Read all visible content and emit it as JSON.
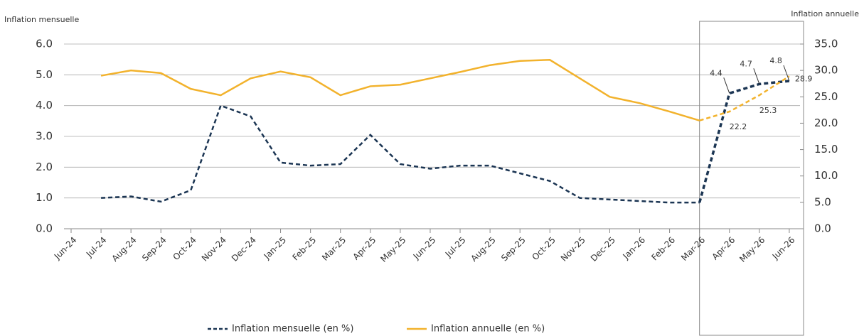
{
  "chart_data": {
    "type": "line",
    "y_axis_label": "Inflation mensuelle",
    "y2_axis_label": "Inflation annuelle",
    "categories": [
      "Jun-24",
      "Jul-24",
      "Aug-24",
      "Sep-24",
      "Oct-24",
      "Nov-24",
      "Dec-24",
      "Jan-25",
      "Feb-25",
      "Mar-25",
      "Apr-25",
      "May-25",
      "Jun-25",
      "Jul-25",
      "Aug-25",
      "Sep-25",
      "Oct-25",
      "Nov-25",
      "Dec-25",
      "Jan-26",
      "Feb-26",
      "Mar-26",
      "Apr-26",
      "May-26",
      "Jun-26"
    ],
    "highlight_from": "Mar-26",
    "series": [
      {
        "name": "Inflation mensuelle (en %)",
        "color": "#1b3553",
        "style": "dashed",
        "axis": "y",
        "values": [
          null,
          1.0,
          1.05,
          0.88,
          1.25,
          4.0,
          3.65,
          2.15,
          2.05,
          2.1,
          3.05,
          2.1,
          1.95,
          2.05,
          2.05,
          1.8,
          1.55,
          1.0,
          0.95,
          0.9,
          0.85,
          0.85,
          4.4,
          4.7,
          4.8
        ]
      },
      {
        "name": "Inflation annuelle (en %)",
        "color": "#f2b22c",
        "style": "solid",
        "axis": "y2",
        "values": [
          null,
          29.0,
          30.0,
          29.5,
          26.5,
          25.3,
          28.5,
          29.8,
          28.7,
          25.3,
          27.0,
          27.3,
          28.5,
          29.7,
          31.0,
          31.8,
          32.0,
          28.5,
          25.0,
          23.8,
          22.2,
          20.5,
          22.2,
          25.3,
          28.9
        ]
      }
    ],
    "ylim": [
      0,
      6
    ],
    "yticks": [
      {
        "value": 0,
        "label": "0.0"
      },
      {
        "value": 1,
        "label": "1.0"
      },
      {
        "value": 2,
        "label": "2.0"
      },
      {
        "value": 3,
        "label": "3.0"
      },
      {
        "value": 4,
        "label": "4.0"
      },
      {
        "value": 5,
        "label": "5.0"
      },
      {
        "value": 6,
        "label": "6.0"
      }
    ],
    "y2lim": [
      0,
      35
    ],
    "y2ticks": [
      {
        "value": 0,
        "label": "0.0"
      },
      {
        "value": 5,
        "label": "5.0"
      },
      {
        "value": 10,
        "label": "10.0"
      },
      {
        "value": 15,
        "label": "15.0"
      },
      {
        "value": 20,
        "label": "20.0"
      },
      {
        "value": 25,
        "label": "25.0"
      },
      {
        "value": 30,
        "label": "30.0"
      },
      {
        "value": 35,
        "label": "35.0"
      }
    ],
    "grid": true,
    "legend": "bottom"
  }
}
